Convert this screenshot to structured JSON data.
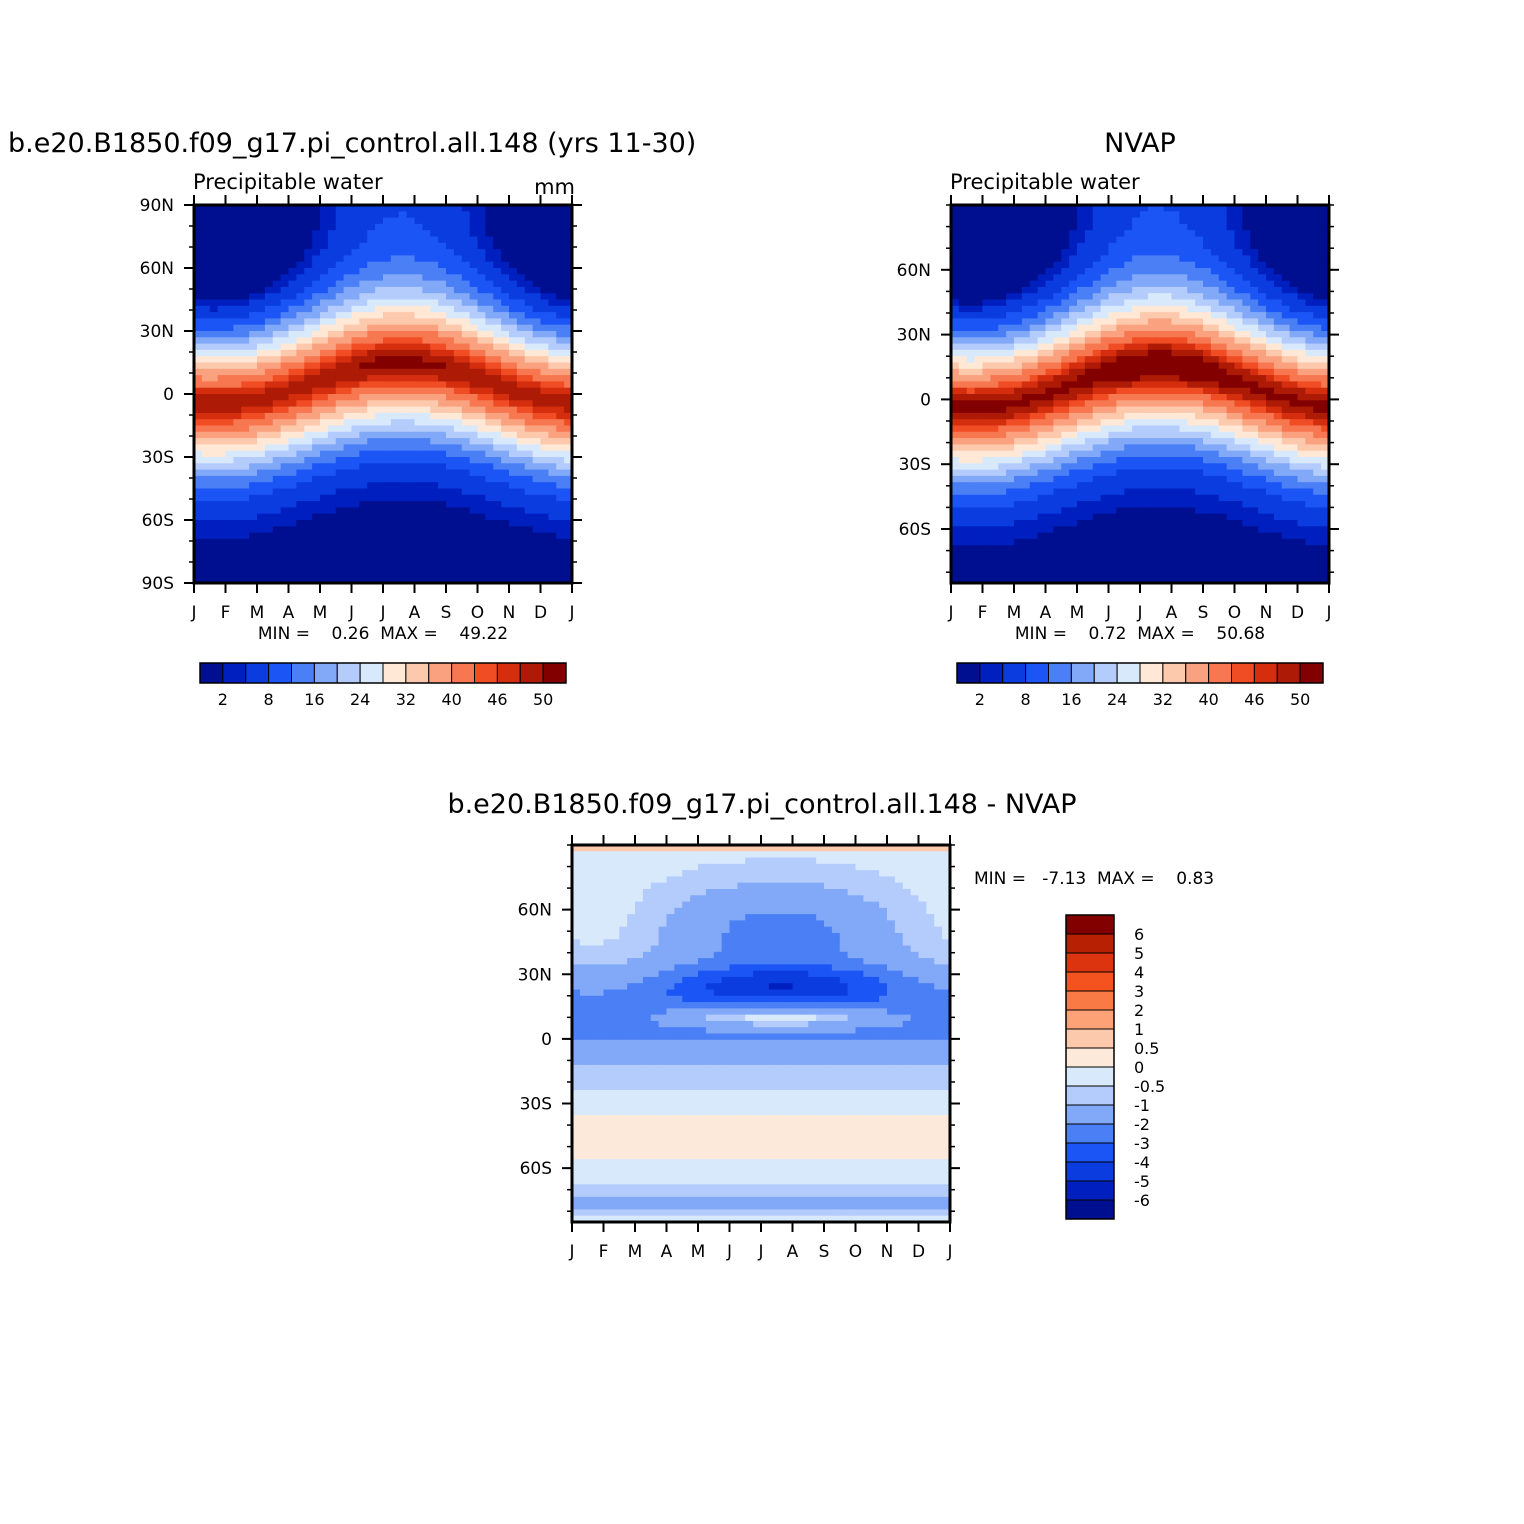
{
  "chart_data": [
    {
      "type": "heatmap",
      "id": "model",
      "title": "b.e20.B1850.f09_g17.pi_control.all.148 (yrs 11-30)",
      "subtitle_left": "Precipitable water",
      "subtitle_right": "mm",
      "x_ticks": [
        "J",
        "F",
        "M",
        "A",
        "M",
        "J",
        "J",
        "A",
        "S",
        "O",
        "N",
        "D",
        "J"
      ],
      "y_ticks": [
        {
          "lat": 90,
          "label": "90N"
        },
        {
          "lat": 60,
          "label": "60N"
        },
        {
          "lat": 30,
          "label": "30N"
        },
        {
          "lat": 0,
          "label": "0"
        },
        {
          "lat": -30,
          "label": "30S"
        },
        {
          "lat": -60,
          "label": "60S"
        },
        {
          "lat": -90,
          "label": "90S"
        }
      ],
      "ylim": [
        -90,
        90
      ],
      "stats_text": "MIN =    0.26  MAX =    49.22",
      "min": 0.26,
      "max": 49.22,
      "colorbar_labels": [
        "2",
        "8",
        "16",
        "24",
        "32",
        "40",
        "46",
        "50"
      ]
    },
    {
      "type": "heatmap",
      "id": "obs",
      "title": "NVAP",
      "subtitle_left": "Precipitable water",
      "x_ticks": [
        "J",
        "F",
        "M",
        "A",
        "M",
        "J",
        "J",
        "A",
        "S",
        "O",
        "N",
        "D",
        "J"
      ],
      "y_ticks": [
        {
          "lat": 60,
          "label": "60N"
        },
        {
          "lat": 30,
          "label": "30N"
        },
        {
          "lat": 0,
          "label": "0"
        },
        {
          "lat": -30,
          "label": "30S"
        },
        {
          "lat": -60,
          "label": "60S"
        }
      ],
      "ylim": [
        -85,
        90
      ],
      "stats_text": "MIN =    0.72  MAX =    50.68",
      "min": 0.72,
      "max": 50.68,
      "colorbar_labels": [
        "2",
        "8",
        "16",
        "24",
        "32",
        "40",
        "46",
        "50"
      ]
    },
    {
      "type": "heatmap",
      "id": "diff",
      "title": "b.e20.B1850.f09_g17.pi_control.all.148 - NVAP",
      "x_ticks": [
        "J",
        "F",
        "M",
        "A",
        "M",
        "J",
        "J",
        "A",
        "S",
        "O",
        "N",
        "D",
        "J"
      ],
      "y_ticks": [
        {
          "lat": 60,
          "label": "60N"
        },
        {
          "lat": 30,
          "label": "30N"
        },
        {
          "lat": 0,
          "label": "0"
        },
        {
          "lat": -30,
          "label": "30S"
        },
        {
          "lat": -60,
          "label": "60S"
        }
      ],
      "ylim": [
        -85,
        90
      ],
      "stats_text": "MIN =   -7.13  MAX =    0.83",
      "min": -7.13,
      "max": 0.83,
      "colorbar_labels": [
        "6",
        "5",
        "4",
        "3",
        "2",
        "1",
        "0.5",
        "0",
        "-0.5",
        "-1",
        "-2",
        "-3",
        "-4",
        "-5",
        "-6"
      ]
    }
  ],
  "palettes": {
    "pw": [
      "#000f8f",
      "#001fbf",
      "#0a3ce0",
      "#1c55f5",
      "#4a7ff5",
      "#82a8f8",
      "#b3ccfb",
      "#d9e9fc",
      "#ffe8d6",
      "#fcc9ad",
      "#faa27f",
      "#f77850",
      "#f04d24",
      "#d42e0f",
      "#ad1a05",
      "#820000"
    ],
    "diff": [
      "#820000",
      "#b82004",
      "#dd3410",
      "#f4521e",
      "#fa7a46",
      "#fca276",
      "#fcc9ad",
      "#fde9d9",
      "#d9e9fc",
      "#b3ccfb",
      "#82a8f8",
      "#4a7ff5",
      "#1c55f5",
      "#0a3ce0",
      "#001fbf",
      "#000f8f"
    ]
  }
}
